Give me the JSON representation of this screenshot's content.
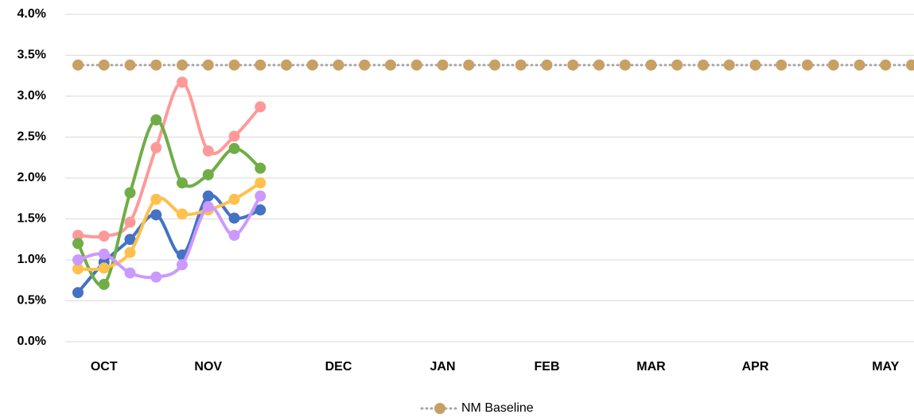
{
  "chart_data": {
    "type": "line",
    "categories": [
      null,
      "OCT",
      null,
      null,
      null,
      "NOV",
      null,
      null,
      null,
      null,
      "DEC",
      null,
      null,
      null,
      "JAN",
      null,
      null,
      null,
      "FEB",
      null,
      null,
      null,
      "MAR",
      null,
      null,
      null,
      "APR",
      null,
      null,
      null,
      null,
      "MAY",
      null
    ],
    "series": [
      {
        "color": "#4472c4",
        "values": [
          0.6,
          0.97,
          1.25,
          1.55,
          1.06,
          1.78,
          1.51,
          1.61,
          null,
          null,
          null,
          null,
          null,
          null,
          null,
          null,
          null,
          null,
          null,
          null,
          null,
          null,
          null,
          null,
          null,
          null,
          null,
          null,
          null,
          null,
          null,
          null,
          null
        ]
      },
      {
        "color": "#ff9999",
        "values": [
          1.3,
          1.29,
          1.46,
          2.37,
          3.17,
          2.33,
          2.51,
          2.87,
          null,
          null,
          null,
          null,
          null,
          null,
          null,
          null,
          null,
          null,
          null,
          null,
          null,
          null,
          null,
          null,
          null,
          null,
          null,
          null,
          null,
          null,
          null,
          null,
          null
        ]
      },
      {
        "color": "#70ad47",
        "values": [
          1.2,
          0.7,
          1.82,
          2.71,
          1.94,
          2.04,
          2.36,
          2.12,
          null,
          null,
          null,
          null,
          null,
          null,
          null,
          null,
          null,
          null,
          null,
          null,
          null,
          null,
          null,
          null,
          null,
          null,
          null,
          null,
          null,
          null,
          null,
          null,
          null
        ]
      },
      {
        "color": "#ffc04c",
        "values": [
          0.89,
          0.9,
          1.09,
          1.74,
          1.56,
          1.61,
          1.74,
          1.94,
          null,
          null,
          null,
          null,
          null,
          null,
          null,
          null,
          null,
          null,
          null,
          null,
          null,
          null,
          null,
          null,
          null,
          null,
          null,
          null,
          null,
          null,
          null,
          null,
          null
        ]
      },
      {
        "color": "#cc99ff",
        "values": [
          1.0,
          1.07,
          0.84,
          0.79,
          0.94,
          1.65,
          1.3,
          1.78,
          null,
          null,
          null,
          null,
          null,
          null,
          null,
          null,
          null,
          null,
          null,
          null,
          null,
          null,
          null,
          null,
          null,
          null,
          null,
          null,
          null,
          null,
          null,
          null,
          null
        ]
      },
      {
        "name": "NM Baseline",
        "color": "#c8a064",
        "line_color": "#a6a6a6",
        "dotted": true,
        "values": [
          3.38,
          3.38,
          3.38,
          3.38,
          3.38,
          3.38,
          3.38,
          3.38,
          3.38,
          3.38,
          3.38,
          3.38,
          3.38,
          3.38,
          3.38,
          3.38,
          3.38,
          3.38,
          3.38,
          3.38,
          3.38,
          3.38,
          3.38,
          3.38,
          3.38,
          3.38,
          3.38,
          3.38,
          3.38,
          3.38,
          3.38,
          3.38,
          3.38
        ]
      }
    ],
    "ylim": [
      0,
      4
    ],
    "yticks": [
      {
        "value": 0,
        "label": "0.0%"
      },
      {
        "value": 0.5,
        "label": "0.5%"
      },
      {
        "value": 1,
        "label": "1.0%"
      },
      {
        "value": 1.5,
        "label": "1.5%"
      },
      {
        "value": 2,
        "label": "2.0%"
      },
      {
        "value": 2.5,
        "label": "2.5%"
      },
      {
        "value": 3,
        "label": "3.0%"
      },
      {
        "value": 3.5,
        "label": "3.5%"
      },
      {
        "value": 4,
        "label": "4.0%"
      }
    ],
    "grid": true,
    "smooth": true,
    "legend": "bottom"
  }
}
